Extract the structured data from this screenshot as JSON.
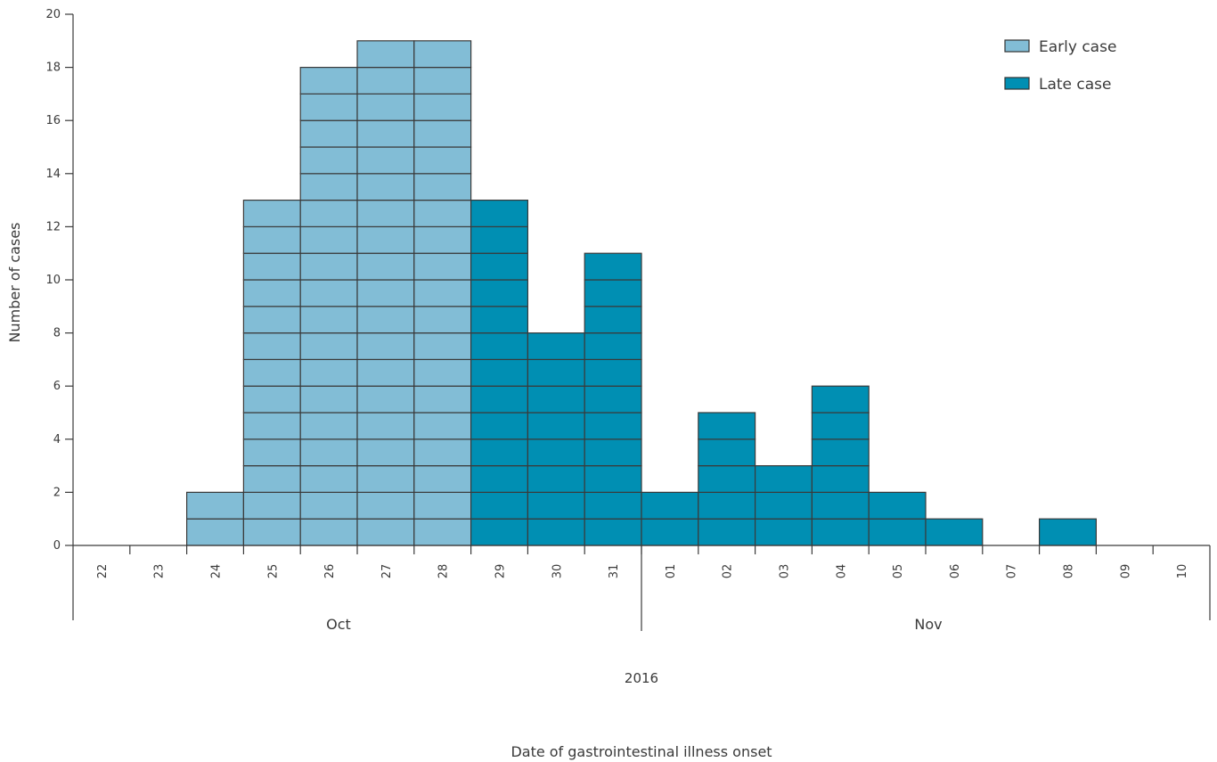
{
  "chart_data": {
    "type": "bar",
    "stacked_units": true,
    "ylabel": "Number of cases",
    "xlabel": "Date of gastrointestinal illness onset",
    "year_label": "2016",
    "ylim": [
      0,
      20
    ],
    "yticks": [
      0,
      2,
      4,
      6,
      8,
      10,
      12,
      14,
      16,
      18,
      20
    ],
    "grid": false,
    "legend_position": "top-right",
    "categories": [
      "22",
      "23",
      "24",
      "25",
      "26",
      "27",
      "28",
      "29",
      "30",
      "31",
      "01",
      "02",
      "03",
      "04",
      "05",
      "06",
      "07",
      "08",
      "09",
      "10"
    ],
    "months": [
      {
        "label": "Oct",
        "start_index": 0,
        "end_index": 9
      },
      {
        "label": "Nov",
        "start_index": 10,
        "end_index": 19
      }
    ],
    "series": [
      {
        "name": "Early case",
        "color": "#82bdd6",
        "values": [
          0,
          0,
          2,
          13,
          18,
          19,
          19,
          0,
          0,
          0,
          0,
          0,
          0,
          0,
          0,
          0,
          0,
          0,
          0,
          0
        ]
      },
      {
        "name": "Late case",
        "color": "#008fb3",
        "values": [
          0,
          0,
          0,
          0,
          0,
          0,
          0,
          13,
          8,
          11,
          2,
          5,
          3,
          6,
          2,
          1,
          0,
          1,
          0,
          0
        ]
      }
    ]
  }
}
